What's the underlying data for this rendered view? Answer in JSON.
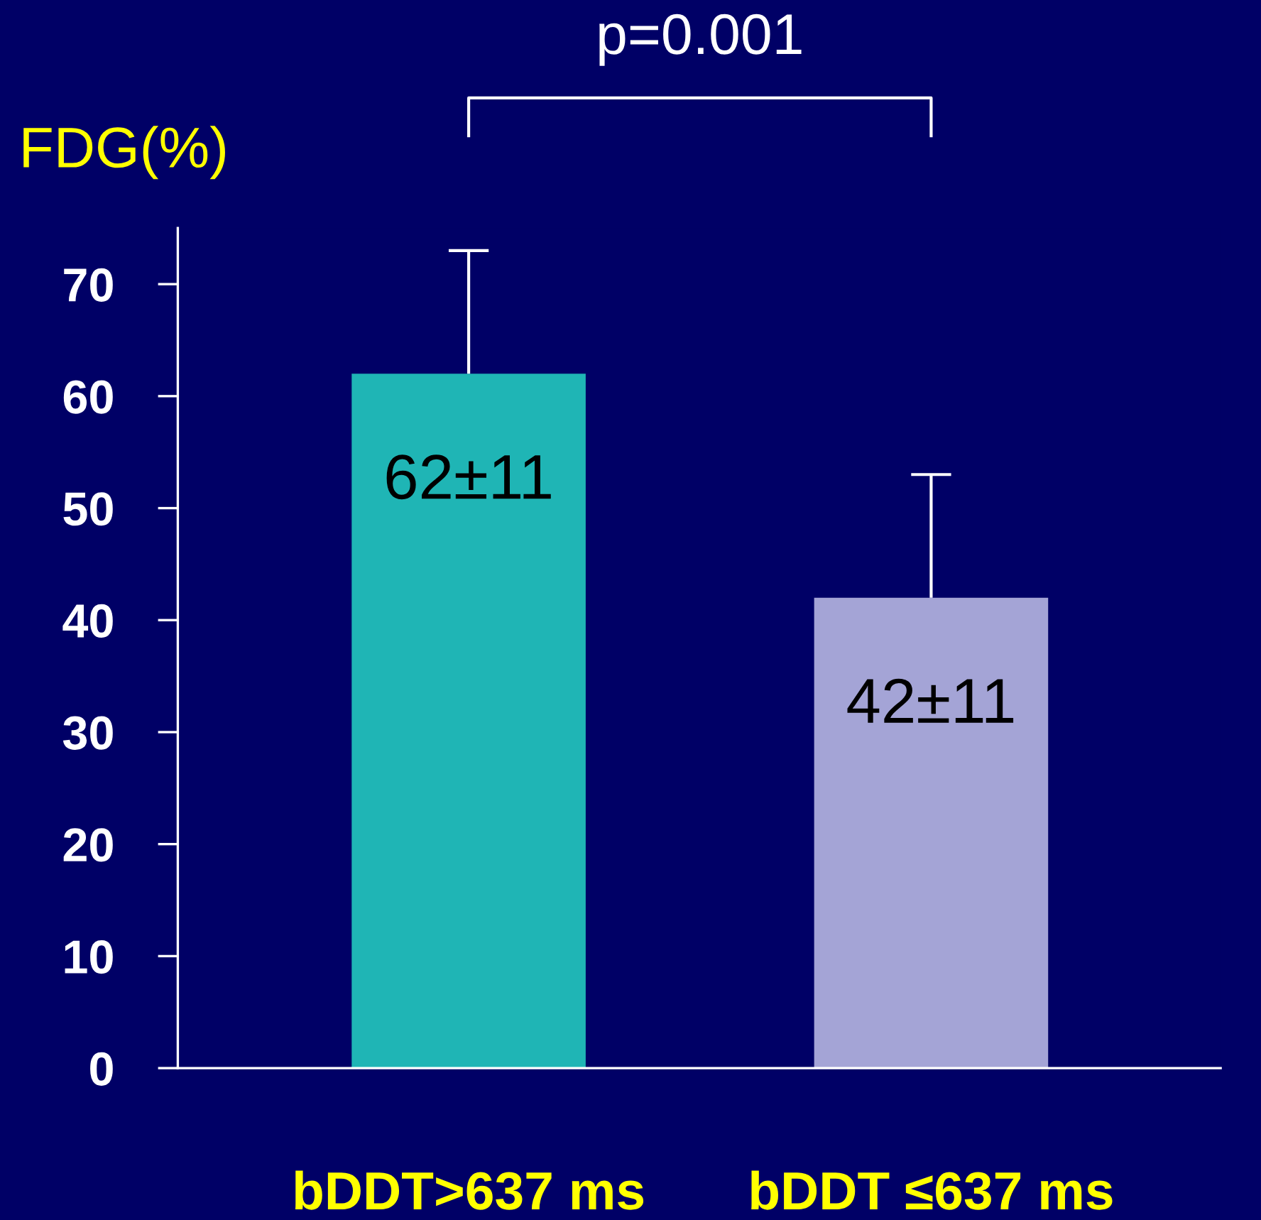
{
  "chart_data": {
    "type": "bar",
    "ylabel": "FDG(%)",
    "categories": [
      "bDDT>637 ms",
      "bDDT ≤637 ms"
    ],
    "values": [
      62,
      42
    ],
    "colors": [
      "#1fb5b5",
      "#a4a4d6"
    ],
    "errors": [
      [
        62,
        73
      ],
      [
        42,
        53
      ]
    ],
    "value_labels": [
      "62±11",
      "42±11"
    ],
    "ylim": [
      0,
      75
    ],
    "yticks": [
      0,
      10,
      20,
      30,
      40,
      50,
      60,
      70
    ],
    "annotations": [
      "p=0.001"
    ],
    "grid": false
  }
}
